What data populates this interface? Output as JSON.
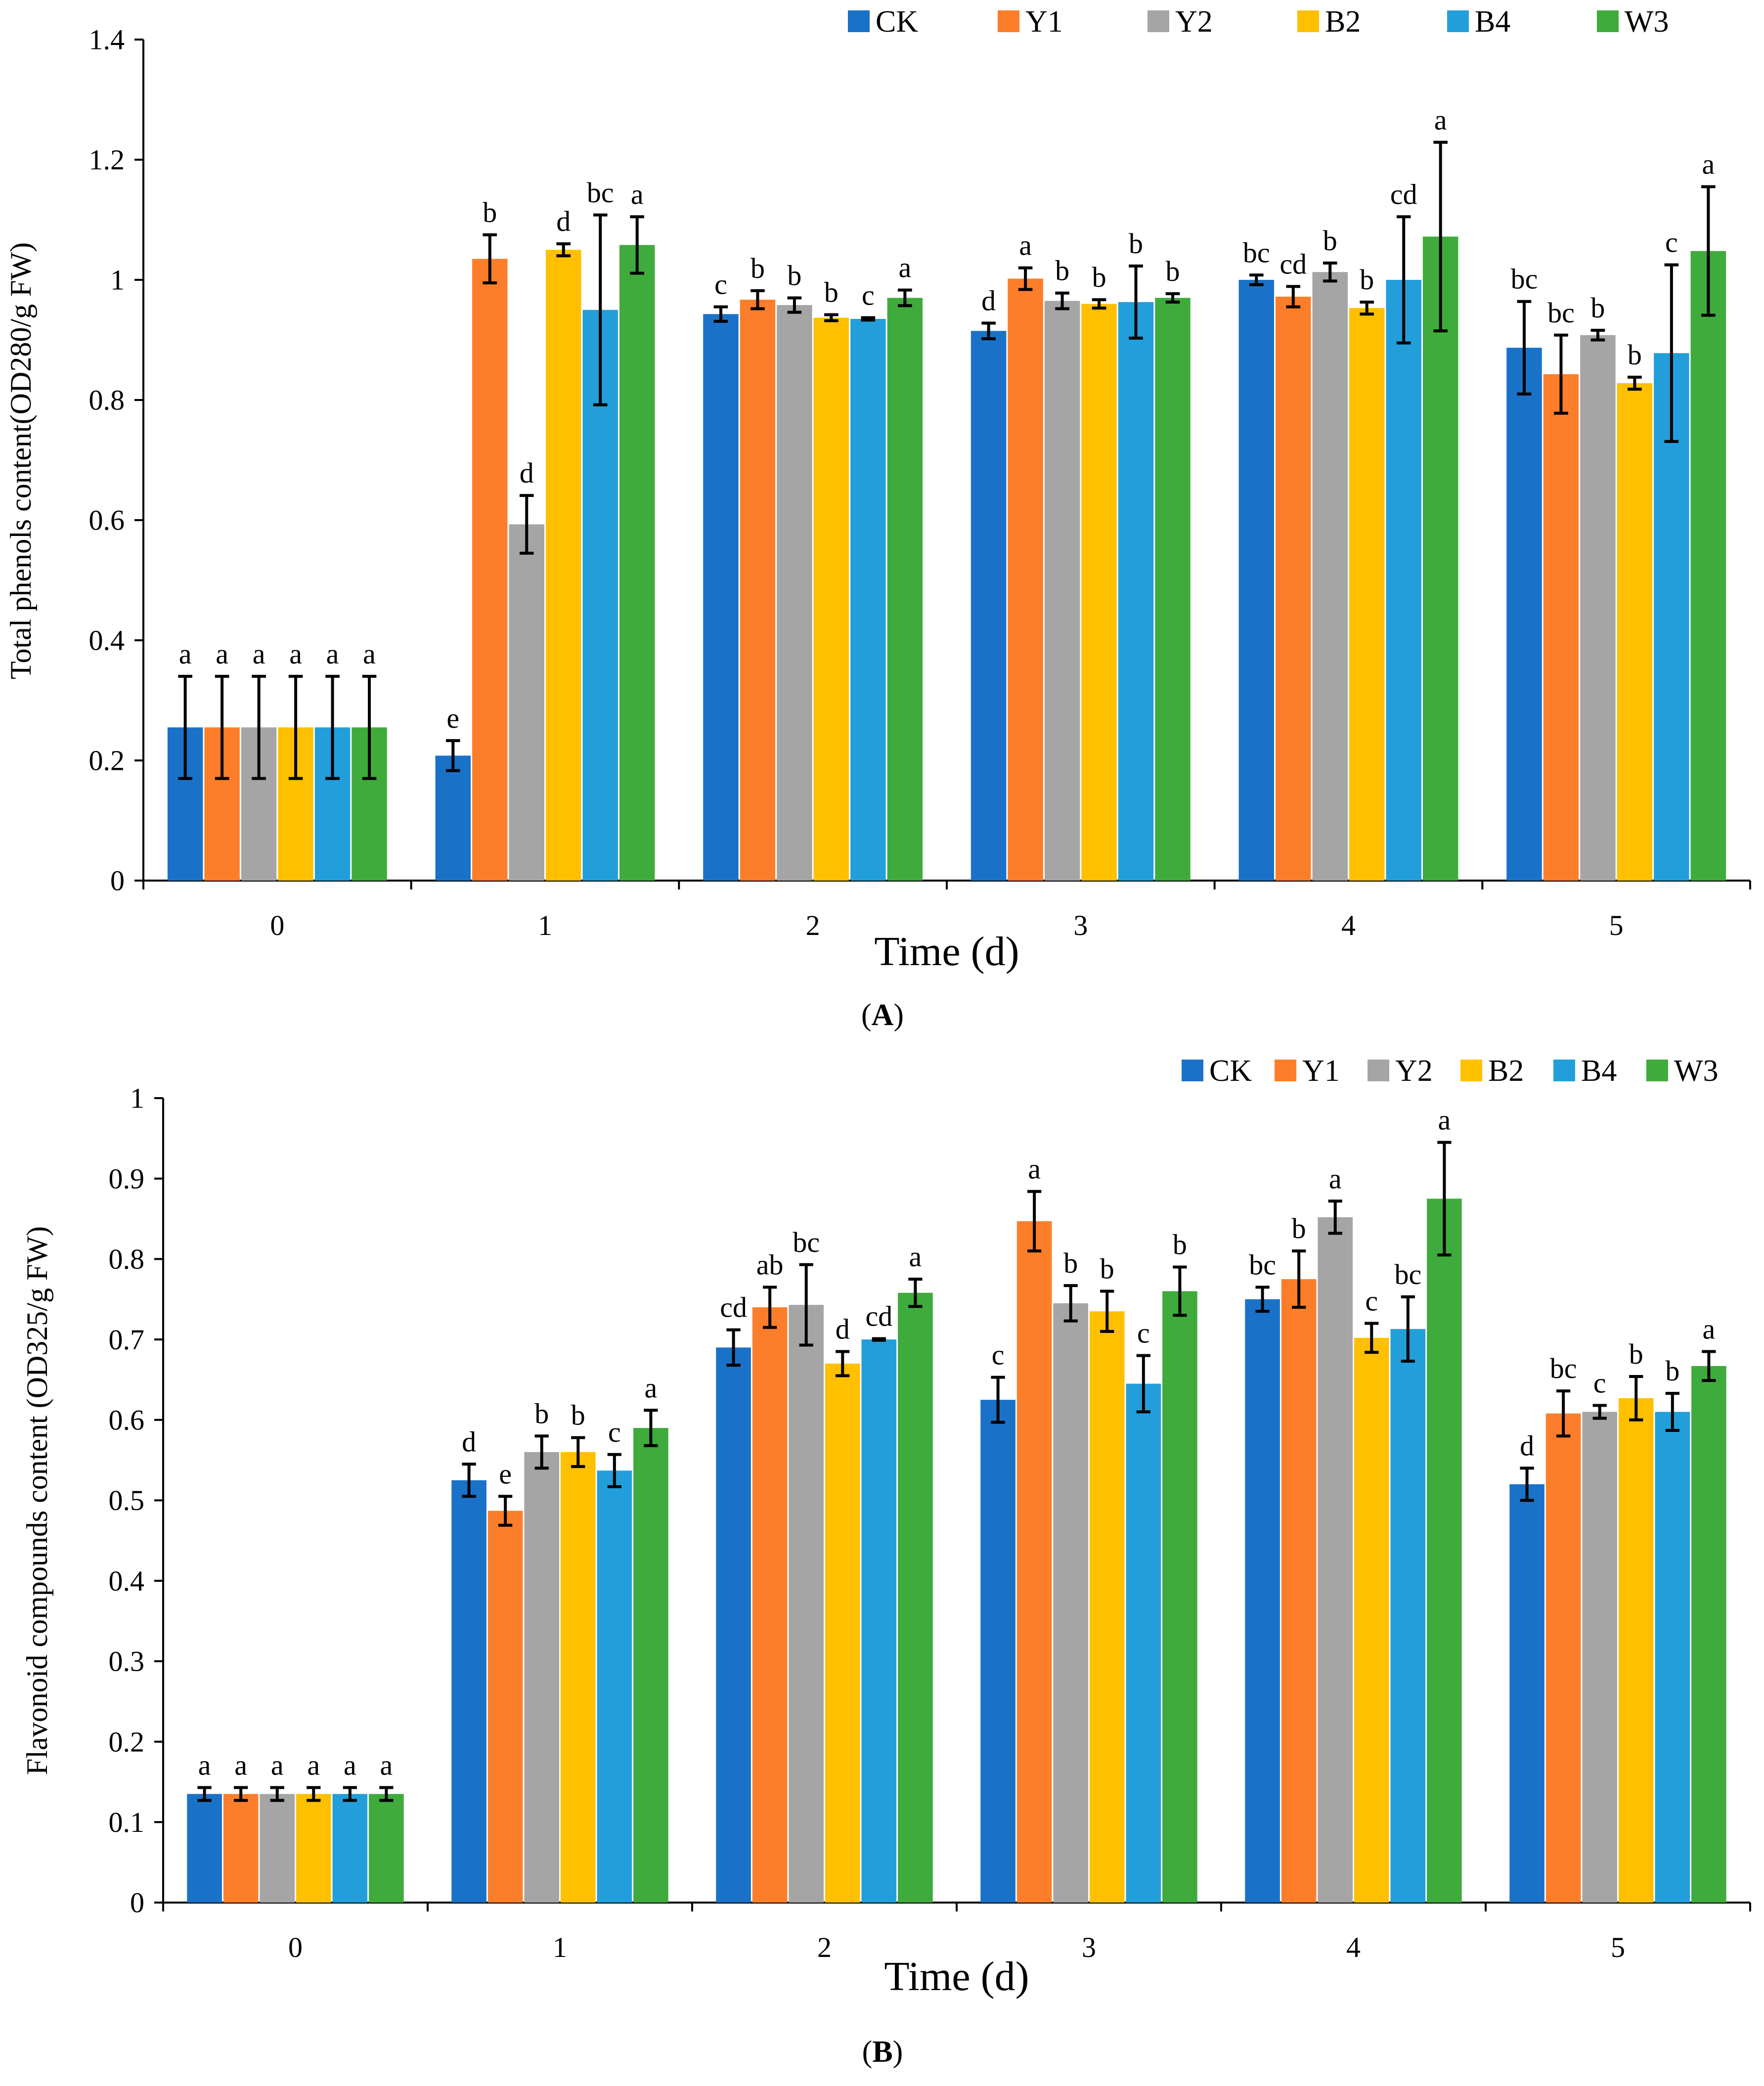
{
  "series_colors": {
    "CK": "#1a72c8",
    "Y1": "#fd7e2a",
    "Y2": "#a5a5a5",
    "B2": "#ffc000",
    "B4": "#229fda",
    "W3": "#3fab3c"
  },
  "chart_data": [
    {
      "type": "bar",
      "panel_label": "A",
      "title": "",
      "xlabel": "Time (d)",
      "ylabel": "Total phenols content(OD280/g FW)",
      "ylim": [
        0,
        1.4
      ],
      "yticks": [
        "0",
        "0.2",
        "0.4",
        "0.6",
        "0.8",
        "1",
        "1.2",
        "1.4"
      ],
      "categories": [
        "0",
        "1",
        "2",
        "3",
        "4",
        "5"
      ],
      "legend_position": "top-right",
      "series": [
        {
          "name": "CK",
          "values": [
            0.255,
            0.208,
            0.943,
            0.915,
            1.0,
            0.887
          ],
          "errors": [
            0.085,
            0.025,
            0.012,
            0.013,
            0.008,
            0.077
          ],
          "labels": [
            "a",
            "e",
            "c",
            "d",
            "bc",
            "bc"
          ]
        },
        {
          "name": "Y1",
          "values": [
            0.255,
            1.035,
            0.967,
            1.002,
            0.972,
            0.843
          ],
          "errors": [
            0.085,
            0.04,
            0.015,
            0.018,
            0.017,
            0.065
          ],
          "labels": [
            "a",
            "b",
            "b",
            "a",
            "cd",
            "bc"
          ]
        },
        {
          "name": "Y2",
          "values": [
            0.255,
            0.593,
            0.958,
            0.965,
            1.013,
            0.908
          ],
          "errors": [
            0.085,
            0.048,
            0.012,
            0.013,
            0.015,
            0.008
          ],
          "labels": [
            "a",
            "d",
            "b",
            "b",
            "b",
            "b"
          ]
        },
        {
          "name": "B2",
          "values": [
            0.255,
            1.05,
            0.937,
            0.96,
            0.953,
            0.828
          ],
          "errors": [
            0.085,
            0.01,
            0.005,
            0.007,
            0.01,
            0.01
          ],
          "labels": [
            "a",
            "d",
            "b",
            "b",
            "b",
            "b"
          ]
        },
        {
          "name": "B4",
          "values": [
            0.255,
            0.95,
            0.935,
            0.963,
            1.0,
            0.878
          ],
          "errors": [
            0.085,
            0.158,
            0.002,
            0.06,
            0.105,
            0.147
          ],
          "labels": [
            "a",
            "bc",
            "c",
            "b",
            "cd",
            "c"
          ]
        },
        {
          "name": "W3",
          "values": [
            0.255,
            1.058,
            0.97,
            0.97,
            1.072,
            1.048
          ],
          "errors": [
            0.085,
            0.047,
            0.013,
            0.007,
            0.157,
            0.107
          ],
          "labels": [
            "a",
            "a",
            "a",
            "b",
            "a",
            "a"
          ]
        }
      ]
    },
    {
      "type": "bar",
      "panel_label": "B",
      "title": "",
      "xlabel": "Time (d)",
      "ylabel": "Flavonoid compounds content (OD325/g FW)",
      "ylim": [
        0,
        1
      ],
      "yticks": [
        "0",
        "0.1",
        "0.2",
        "0.3",
        "0.4",
        "0.5",
        "0.6",
        "0.7",
        "0.8",
        "0.9",
        "1"
      ],
      "categories": [
        "0",
        "1",
        "2",
        "3",
        "4",
        "5"
      ],
      "legend_position": "top-right",
      "series": [
        {
          "name": "CK",
          "values": [
            0.135,
            0.525,
            0.69,
            0.625,
            0.75,
            0.52
          ],
          "errors": [
            0.008,
            0.02,
            0.022,
            0.028,
            0.015,
            0.02
          ],
          "labels": [
            "a",
            "d",
            "cd",
            "c",
            "bc",
            "d"
          ]
        },
        {
          "name": "Y1",
          "values": [
            0.135,
            0.487,
            0.74,
            0.847,
            0.775,
            0.608
          ],
          "errors": [
            0.008,
            0.018,
            0.025,
            0.037,
            0.035,
            0.028
          ],
          "labels": [
            "a",
            "e",
            "ab",
            "a",
            "b",
            "bc"
          ]
        },
        {
          "name": "Y2",
          "values": [
            0.135,
            0.56,
            0.743,
            0.745,
            0.852,
            0.61
          ],
          "errors": [
            0.008,
            0.02,
            0.05,
            0.022,
            0.02,
            0.008
          ],
          "labels": [
            "a",
            "b",
            "bc",
            "b",
            "a",
            "c"
          ]
        },
        {
          "name": "B2",
          "values": [
            0.135,
            0.56,
            0.67,
            0.735,
            0.702,
            0.627
          ],
          "errors": [
            0.008,
            0.018,
            0.015,
            0.025,
            0.018,
            0.027
          ],
          "labels": [
            "a",
            "b",
            "d",
            "b",
            "c",
            "b"
          ]
        },
        {
          "name": "B4",
          "values": [
            0.135,
            0.537,
            0.7,
            0.645,
            0.713,
            0.61
          ],
          "errors": [
            0.008,
            0.02,
            0.001,
            0.035,
            0.04,
            0.023
          ],
          "labels": [
            "a",
            "c",
            "cd",
            "c",
            "bc",
            "b"
          ]
        },
        {
          "name": "W3",
          "values": [
            0.135,
            0.59,
            0.758,
            0.76,
            0.875,
            0.667
          ],
          "errors": [
            0.008,
            0.022,
            0.017,
            0.03,
            0.07,
            0.018
          ],
          "labels": [
            "a",
            "a",
            "a",
            "b",
            "a",
            "a"
          ]
        }
      ]
    }
  ]
}
